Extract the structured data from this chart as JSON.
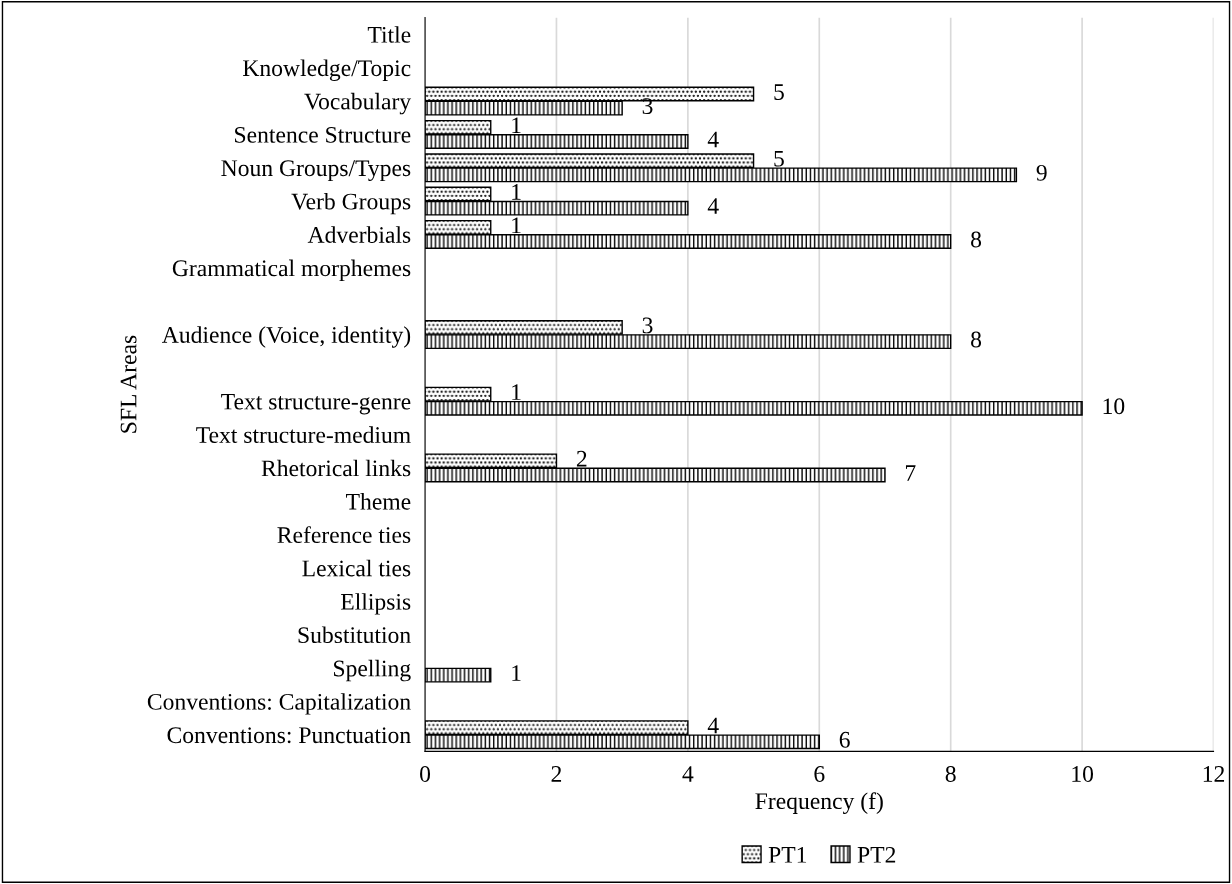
{
  "chart_data": {
    "type": "bar",
    "orientation": "horizontal",
    "xlabel": "Frequency (f)",
    "ylabel": "SFL Areas",
    "categories": [
      "Title",
      "Knowledge/Topic",
      "Vocabulary",
      "Sentence Structure",
      "Noun Groups/Types",
      "Verb Groups",
      "Adverbials",
      "Grammatical morphemes",
      null,
      "Audience (Voice, identity)",
      null,
      "Text structure-genre",
      "Text structure-medium",
      "Rhetorical links",
      "Theme",
      "Reference ties",
      "Lexical ties",
      "Ellipsis",
      "Substitution",
      "Spelling",
      "Conventions: Capitalization",
      "Conventions: Punctuation"
    ],
    "series": [
      {
        "name": "PT1",
        "color": "#000000",
        "values": [
          null,
          null,
          5,
          1,
          5,
          1,
          1,
          null,
          null,
          3,
          null,
          1,
          null,
          2,
          null,
          null,
          null,
          null,
          null,
          null,
          null,
          4
        ]
      },
      {
        "name": "PT2",
        "color": "#000000",
        "values": [
          null,
          null,
          3,
          4,
          9,
          4,
          8,
          null,
          null,
          8,
          null,
          10,
          null,
          7,
          null,
          null,
          null,
          null,
          null,
          1,
          null,
          6
        ]
      }
    ],
    "xlim": [
      0,
      12
    ],
    "xticks": [
      0,
      2,
      4,
      6,
      8,
      10,
      12
    ],
    "grid": "x",
    "legend": "bottom",
    "data_labels": true
  }
}
